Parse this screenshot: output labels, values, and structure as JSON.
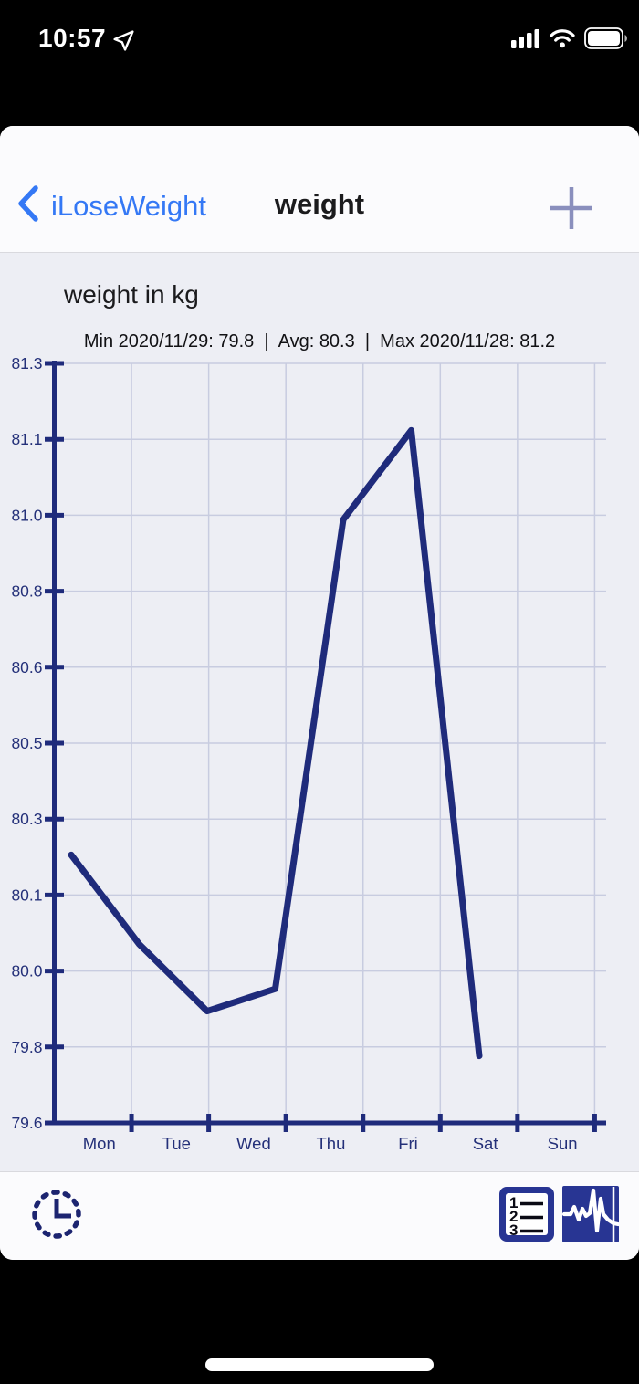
{
  "status_bar": {
    "time": "10:57",
    "icons": [
      "location-arrow",
      "cellular-signal",
      "wifi",
      "battery-full"
    ]
  },
  "nav": {
    "back_label": "iLoseWeight",
    "title": "weight"
  },
  "chart_header": {
    "title": "weight in kg",
    "stats_line": "Min 2020/11/29: 79.8  |  Avg: 80.3  |  Max 2020/11/28: 81.2"
  },
  "chart_data": {
    "type": "line",
    "title": "weight in kg",
    "unit": "kg",
    "categories": [
      "Mon",
      "Tue",
      "Wed",
      "Thu",
      "Fri",
      "Sat",
      "Sun"
    ],
    "values": [
      80.2,
      80.0,
      79.85,
      79.9,
      80.95,
      81.15,
      79.75
    ],
    "y_tick_labels": [
      "81.3",
      "81.1",
      "81.0",
      "80.8",
      "80.6",
      "80.5",
      "80.3",
      "80.1",
      "80.0",
      "79.8",
      "79.6"
    ],
    "ylim": [
      79.6,
      81.3
    ],
    "grid": true,
    "legend": "none",
    "stats": {
      "min": "Min 2020/11/29: 79.8",
      "avg": "Avg: 80.3",
      "max": "Max 2020/11/28: 81.2"
    },
    "line_color": "#1f2b7b",
    "grid_color": "#c8cce0",
    "background_color": "#edeef4"
  },
  "toolbar": {
    "list_digits": [
      "1",
      "2",
      "3"
    ],
    "icons": [
      "clock",
      "numbered-list",
      "pulse-chart"
    ]
  },
  "colors": {
    "accent_blue": "#3478f5",
    "navy": "#1f2b7b",
    "plus_gray": "#8a8fbd"
  }
}
